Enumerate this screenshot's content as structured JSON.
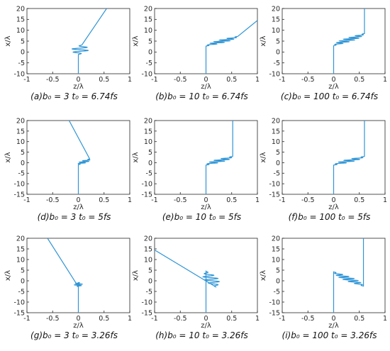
{
  "style": {
    "line_color": "#2F95D6",
    "axis_color": "#262626"
  },
  "chart_data": [
    {
      "type": "line",
      "caption": "(a)b₀ = 3 t₀ = 6.74fs",
      "xlabel": "z/λ",
      "ylabel": "x/λ",
      "xlim": [
        -1,
        1
      ],
      "ylim": [
        -10,
        20
      ],
      "xticks": [
        "-1",
        "-0.5",
        "0",
        "0.5",
        "1"
      ],
      "yticks": [
        "-10",
        "-5",
        "0",
        "5",
        "10",
        "15",
        "20"
      ],
      "features": {
        "x0": 0,
        "y0": -10,
        "jump_y": 0.3,
        "gain": 1.1,
        "width": 2.0,
        "cycles": 3,
        "x1": 0.07,
        "y1": 3.3,
        "x2": 0.55,
        "y2": 20
      }
    },
    {
      "type": "line",
      "caption": "(b)b₀ = 10 t₀ = 6.74fs",
      "xlabel": "z/λ",
      "ylabel": "x/λ",
      "xlim": [
        -1,
        1
      ],
      "ylim": [
        -10,
        20
      ],
      "xticks": [
        "-1",
        "-0.5",
        "0",
        "0.5",
        "1"
      ],
      "yticks": [
        "-10",
        "-5",
        "0",
        "5",
        "10",
        "15",
        "20"
      ],
      "features": {
        "x0": 0,
        "y0": -10,
        "jump_y": 4.3,
        "gain": 0.6,
        "width": 2.2,
        "cycles": 6,
        "x1": 0.62,
        "y1": 7.2,
        "x2": 1.0,
        "y2": 14.5
      }
    },
    {
      "type": "line",
      "caption": "(c)b₀ = 100 t₀ = 6.74fs",
      "xlabel": "z/λ",
      "ylabel": "x/λ",
      "xlim": [
        -1,
        1
      ],
      "ylim": [
        -10,
        20
      ],
      "xticks": [
        "-1",
        "-0.5",
        "0",
        "0.5",
        "1"
      ],
      "yticks": [
        "-10",
        "-5",
        "0",
        "5",
        "10",
        "15",
        "20"
      ],
      "features": {
        "x0": 0,
        "y0": -10,
        "jump_y": 4.5,
        "gain": 0.6,
        "width": 2.2,
        "cycles": 7,
        "x1": 0.6,
        "y1": 8.5,
        "x2": 0.6,
        "y2": 20
      }
    },
    {
      "type": "line",
      "caption": "(d)b₀ = 3 t₀ = 5fs",
      "xlabel": "z/λ",
      "ylabel": "x/λ",
      "xlim": [
        -1,
        1
      ],
      "ylim": [
        -15,
        20
      ],
      "xticks": [
        "-1",
        "-0.5",
        "0",
        "0.5",
        "1"
      ],
      "yticks": [
        "-15",
        "-10",
        "-5",
        "0",
        "5",
        "10",
        "15",
        "20"
      ],
      "features": {
        "x0": 0,
        "y0": -15,
        "jump_y": 0.3,
        "gain": 0.0,
        "width": 1.5,
        "cycles": 4,
        "x1": 0.22,
        "y1": 1.8,
        "x2": -0.18,
        "y2": 20
      }
    },
    {
      "type": "line",
      "caption": "(e)b₀ = 10 t₀ = 5fs",
      "xlabel": "z/λ",
      "ylabel": "x/λ",
      "xlim": [
        -1,
        1
      ],
      "ylim": [
        -15,
        20
      ],
      "xticks": [
        "-1",
        "-0.5",
        "0",
        "0.5",
        "1"
      ],
      "yticks": [
        "-15",
        "-10",
        "-5",
        "0",
        "5",
        "10",
        "15",
        "20"
      ],
      "features": {
        "x0": 0,
        "y0": -15,
        "jump_y": 0.2,
        "gain": 0.6,
        "width": 1.7,
        "cycles": 5,
        "x1": 0.52,
        "y1": 3.0,
        "x2": 0.52,
        "y2": 20
      }
    },
    {
      "type": "line",
      "caption": "(f)b₀ = 100 t₀ = 5fs",
      "xlabel": "z/λ",
      "ylabel": "x/λ",
      "xlim": [
        -1,
        1
      ],
      "ylim": [
        -15,
        20
      ],
      "xticks": [
        "-1",
        "-0.5",
        "0",
        "0.5",
        "1"
      ],
      "yticks": [
        "-15",
        "-10",
        "-5",
        "0",
        "5",
        "10",
        "15",
        "20"
      ],
      "features": {
        "x0": 0,
        "y0": -15,
        "jump_y": 0.2,
        "gain": 0.6,
        "width": 1.7,
        "cycles": 5,
        "x1": 0.6,
        "y1": 3.0,
        "x2": 0.6,
        "y2": 20
      }
    },
    {
      "type": "line",
      "caption": "(g)b₀ = 3 t₀ = 3.26fs",
      "xlabel": "z/λ",
      "ylabel": "x/λ",
      "xlim": [
        -1,
        1
      ],
      "ylim": [
        -15,
        20
      ],
      "xticks": [
        "-1",
        "-0.5",
        "0",
        "0.5",
        "1"
      ],
      "yticks": [
        "-15",
        "-10",
        "-5",
        "0",
        "5",
        "10",
        "15",
        "20"
      ],
      "features": {
        "x0": 0,
        "y0": -15,
        "jump_y": 0.3,
        "gain": 0.0,
        "width": 1.0,
        "cycles": 3,
        "x1": 0.0,
        "y1": -2.8,
        "x2": -0.6,
        "y2": 20
      }
    },
    {
      "type": "line",
      "caption": "(h)b₀ = 10 t₀ = 3.26fs",
      "xlabel": "z/λ",
      "ylabel": "x/λ",
      "xlim": [
        -1,
        1
      ],
      "ylim": [
        -15,
        20
      ],
      "xticks": [
        "-1",
        "-0.5",
        "0",
        "0.5",
        "1"
      ],
      "yticks": [
        "-15",
        "-10",
        "-5",
        "0",
        "5",
        "10",
        "15",
        "20"
      ],
      "features": {
        "x0": 0,
        "y0": -15,
        "jump_y": 5.8,
        "gain": 0.8,
        "width": 1.6,
        "cycles": 5,
        "x1": 0.2,
        "y1": -3.0,
        "x2": -1.0,
        "y2": 14.5
      }
    },
    {
      "type": "line",
      "caption": "(i)b₀ = 100 t₀ = 3.26fs",
      "xlabel": "z/λ",
      "ylabel": "x/λ",
      "xlim": [
        -1,
        1
      ],
      "ylim": [
        -15,
        20
      ],
      "xticks": [
        "-1",
        "-0.5",
        "0",
        "0.5",
        "1"
      ],
      "yticks": [
        "-15",
        "-10",
        "-5",
        "0",
        "5",
        "10",
        "15",
        "20"
      ],
      "features": {
        "x0": 0,
        "y0": -15,
        "jump_y": 5.6,
        "gain": 0.6,
        "width": 1.8,
        "cycles": 7,
        "x1": 0.58,
        "y1": -2.5,
        "x2": 0.58,
        "y2": 20
      }
    }
  ]
}
